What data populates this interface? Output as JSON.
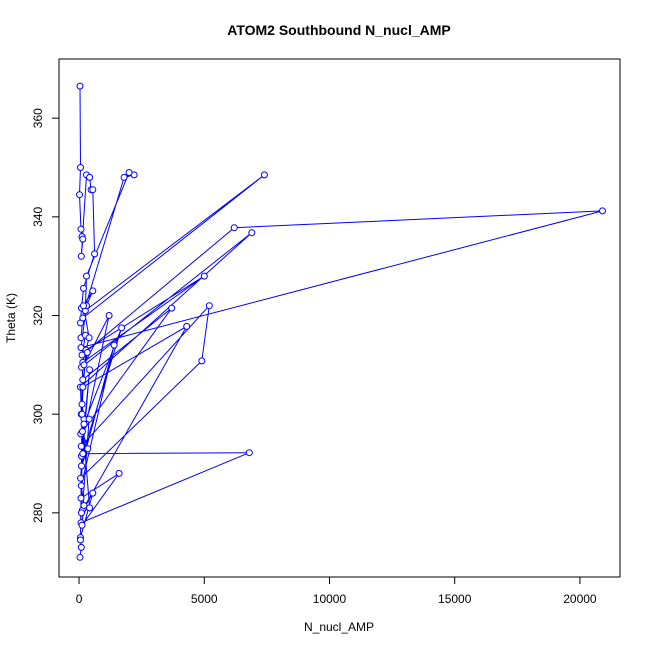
{
  "chart_data": {
    "type": "line",
    "title": "ATOM2 Southbound N_nucl_AMP",
    "xlabel": "N_nucl_AMP",
    "ylabel": "Theta (K)",
    "xlim": [
      -800,
      21600
    ],
    "ylim": [
      267,
      372
    ],
    "xticks": [
      0,
      5000,
      10000,
      15000,
      20000
    ],
    "yticks": [
      280,
      300,
      320,
      340,
      360
    ],
    "grid": false,
    "legend": "none",
    "color": "#0000ff",
    "series": [
      {
        "marker": "open-circle",
        "x": [
          40,
          60,
          20,
          80,
          120,
          150,
          90,
          300,
          420,
          480,
          550,
          620,
          180,
          100,
          60,
          1800,
          2200,
          2000,
          300,
          250,
          7400,
          150,
          80,
          260,
          120,
          6200,
          20900,
          80,
          300,
          550,
          180,
          400,
          100,
          6900,
          60,
          90,
          150,
          5000,
          280,
          120,
          200,
          70,
          3700,
          150,
          330,
          200,
          1200,
          90,
          5200,
          4900,
          60,
          420,
          100,
          150,
          4300,
          130,
          400,
          200,
          1700,
          150,
          6800,
          80,
          140,
          350,
          100,
          1400,
          90,
          200,
          120,
          1600,
          80,
          60,
          550,
          100,
          420,
          120,
          60,
          90,
          40
        ],
        "y": [
          366.5,
          350.0,
          344.5,
          337.5,
          336.0,
          335.5,
          332.0,
          348.5,
          348.0,
          345.5,
          345.5,
          332.5,
          325.5,
          321.5,
          318.5,
          348.0,
          348.5,
          349.0,
          328.0,
          321.0,
          348.5,
          319.5,
          315.5,
          316.0,
          312.0,
          337.8,
          341.2,
          313.5,
          322.0,
          325.0,
          322.0,
          315.5,
          309.5,
          336.8,
          305.5,
          300.0,
          310.5,
          328.0,
          313.0,
          302.0,
          299.0,
          296.0,
          321.5,
          307.0,
          312.5,
          310.0,
          320.0,
          293.5,
          322.0,
          310.8,
          287.0,
          309.0,
          291.5,
          305.5,
          317.8,
          280.5,
          299.0,
          298.0,
          317.5,
          292.0,
          292.2,
          278.0,
          296.5,
          293.0,
          289.5,
          314.0,
          285.5,
          281.5,
          277.5,
          288.0,
          283.0,
          275.0,
          284.0,
          280.0,
          281.0,
          300.0,
          274.5,
          273.0,
          271.0
        ]
      }
    ]
  }
}
